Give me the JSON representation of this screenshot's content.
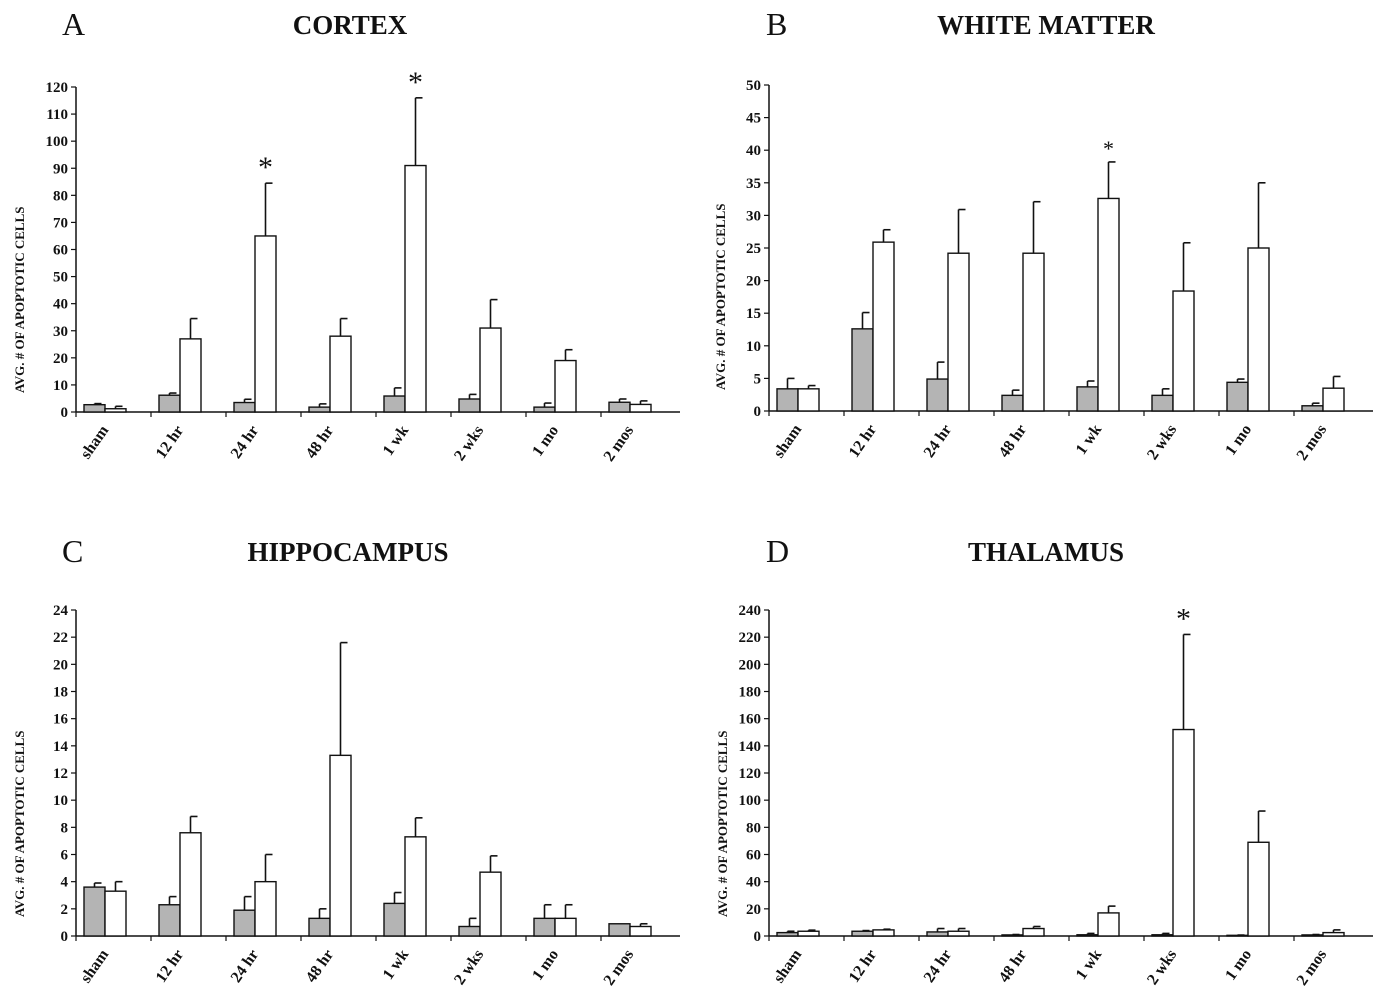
{
  "chart_data": [
    {
      "type": "bar",
      "panel": "A",
      "title": "CORTEX",
      "ylabel": "AVG. # OF APOPTOTIC CELLS",
      "categories": [
        "sham",
        "12 hr",
        "24 hr",
        "48 hr",
        "1 wk",
        "2 wks",
        "1 mo",
        "2 mos"
      ],
      "ylim": [
        0,
        120
      ],
      "yticks": [
        0,
        10,
        20,
        30,
        40,
        50,
        60,
        70,
        80,
        90,
        100,
        110,
        120
      ],
      "series": [
        {
          "style": "shaded",
          "values": [
            2.7,
            6.2,
            3.5,
            1.8,
            5.9,
            4.8,
            1.8,
            3.6
          ],
          "errors": [
            0.4,
            0.8,
            1.2,
            1.2,
            3.0,
            1.7,
            1.5,
            1.2
          ]
        },
        {
          "style": "open",
          "values": [
            1.2,
            27,
            65,
            28,
            91,
            31,
            19,
            2.8
          ],
          "errors": [
            0.9,
            7.5,
            19.5,
            6.5,
            25,
            10.5,
            4,
            1.3
          ]
        }
      ],
      "annotations": [
        {
          "text": "*",
          "category": "24 hr"
        },
        {
          "text": "*",
          "category": "1 wk"
        }
      ]
    },
    {
      "type": "bar",
      "panel": "B",
      "title": "WHITE MATTER",
      "ylabel": "AVG. # OF APOPTOTIC CELLS",
      "categories": [
        "sham",
        "12 hr",
        "24 hr",
        "48 hr",
        "1 wk",
        "2 wks",
        "1 mo",
        "2 mos"
      ],
      "ylim": [
        0,
        50
      ],
      "yticks": [
        0,
        5,
        10,
        15,
        20,
        25,
        30,
        35,
        40,
        45,
        50
      ],
      "series": [
        {
          "style": "shaded",
          "values": [
            3.4,
            12.6,
            4.9,
            2.4,
            3.7,
            2.4,
            4.4,
            0.8
          ],
          "errors": [
            1.6,
            2.5,
            2.6,
            0.8,
            0.9,
            1.0,
            0.5,
            0.4
          ]
        },
        {
          "style": "open",
          "values": [
            3.4,
            25.9,
            24.2,
            24.2,
            32.6,
            18.4,
            25,
            3.5
          ],
          "errors": [
            0.5,
            1.9,
            6.7,
            7.9,
            5.6,
            7.4,
            10,
            1.8
          ]
        }
      ],
      "annotations": [
        {
          "text": "*",
          "category": "1 wk"
        }
      ]
    },
    {
      "type": "bar",
      "panel": "C",
      "title": "HIPPOCAMPUS",
      "ylabel": "AVG. # OF APOPTOTIC CELLS",
      "categories": [
        "sham",
        "12 hr",
        "24 hr",
        "48 hr",
        "1 wk",
        "2 wks",
        "1 mo",
        "2 mos"
      ],
      "ylim": [
        0,
        24
      ],
      "yticks": [
        0,
        2,
        4,
        6,
        8,
        10,
        12,
        14,
        16,
        18,
        20,
        22,
        24
      ],
      "series": [
        {
          "style": "shaded",
          "values": [
            3.6,
            2.3,
            1.9,
            1.3,
            2.4,
            0.7,
            1.3,
            0.9
          ],
          "errors": [
            0.3,
            0.6,
            1.0,
            0.7,
            0.8,
            0.6,
            1.0,
            0.0
          ]
        },
        {
          "style": "open",
          "values": [
            3.3,
            7.6,
            4.0,
            13.3,
            7.3,
            4.7,
            1.3,
            0.7
          ],
          "errors": [
            0.7,
            1.2,
            2.0,
            8.3,
            1.4,
            1.2,
            1.0,
            0.2
          ]
        }
      ],
      "annotations": []
    },
    {
      "type": "bar",
      "panel": "D",
      "title": "THALAMUS",
      "ylabel": "AVG. # OF APOPTOTIC CELLS",
      "categories": [
        "sham",
        "12 hr",
        "24 hr",
        "48 hr",
        "1 wk",
        "2 wks",
        "1 mo",
        "2 mos"
      ],
      "ylim": [
        0,
        240
      ],
      "yticks": [
        0,
        20,
        40,
        60,
        80,
        100,
        120,
        140,
        160,
        180,
        200,
        220,
        240
      ],
      "series": [
        {
          "style": "shaded",
          "values": [
            2.5,
            3.5,
            3.0,
            0.8,
            0.9,
            0.9,
            0.5,
            0.8
          ],
          "errors": [
            1.0,
            0.5,
            2.5,
            0.3,
            1.0,
            1.0,
            0.2,
            0.3
          ]
        },
        {
          "style": "open",
          "values": [
            3.5,
            4.5,
            3.5,
            5.5,
            17,
            152,
            69,
            2.5
          ],
          "errors": [
            0.8,
            0.5,
            2.0,
            1.5,
            5,
            70,
            23,
            2.0
          ]
        }
      ],
      "annotations": [
        {
          "text": "*",
          "category": "2 wks"
        }
      ]
    }
  ],
  "colors": {
    "shaded": "#b4b4b4",
    "open": "#ffffff",
    "stroke": "#111111"
  }
}
